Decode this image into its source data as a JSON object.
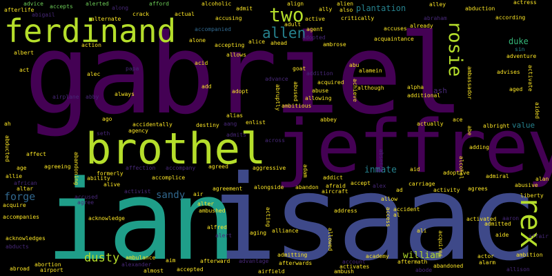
{
  "colors": {
    "background": "#000000",
    "purple": "#440154",
    "violet": "#482878",
    "indigo": "#3e4989",
    "blue": "#31688e",
    "teal": "#26828e",
    "green": "#1f9e89",
    "mint": "#35b779",
    "lime": "#6ece58",
    "yellow": "#b5de2b",
    "gold": "#fde725"
  },
  "words": [
    {
      "text": "gabriel",
      "color": "#440154"
    },
    {
      "text": "jeffrey",
      "color": "#440154"
    },
    {
      "text": "isaac",
      "color": "#3e4989"
    },
    {
      "text": "ian",
      "color": "#1f9e89"
    },
    {
      "text": "brothel",
      "color": "#b5de2b"
    },
    {
      "text": "ferdinand",
      "color": "#b5de2b"
    },
    {
      "text": "rex",
      "color": "#b5de2b"
    },
    {
      "text": "two",
      "color": "#b5de2b"
    },
    {
      "text": "allen",
      "color": "#26828e"
    },
    {
      "text": "rosie",
      "color": "#b5de2b"
    },
    {
      "text": "dusty",
      "color": "#b5de2b"
    },
    {
      "text": "forge",
      "color": "#31688e"
    },
    {
      "text": "sandy",
      "color": "#31688e"
    },
    {
      "text": "william",
      "color": "#b5de2b"
    },
    {
      "text": "plantation",
      "color": "#26828e"
    },
    {
      "text": "inmate",
      "color": "#26828e"
    },
    {
      "text": "duke",
      "color": "#35b779"
    },
    {
      "text": "value",
      "color": "#26828e"
    },
    {
      "text": "ash",
      "color": "#482878"
    },
    {
      "text": "afterlife",
      "color": "#fde725"
    },
    {
      "text": "advice",
      "color": "#6ece58"
    },
    {
      "text": "accepts",
      "color": "#6ece58"
    },
    {
      "text": "alerted",
      "color": "#6ece58"
    },
    {
      "text": "along",
      "color": "#482878"
    },
    {
      "text": "afford",
      "color": "#6ece58"
    },
    {
      "text": "alcoholic",
      "color": "#fde725"
    },
    {
      "text": "align",
      "color": "#fde725"
    },
    {
      "text": "alien",
      "color": "#fde725"
    },
    {
      "text": "ally",
      "color": "#fde725"
    },
    {
      "text": "also",
      "color": "#fde725"
    },
    {
      "text": "alley",
      "color": "#fde725"
    },
    {
      "text": "abduction",
      "color": "#fde725"
    },
    {
      "text": "actress",
      "color": "#fde725"
    },
    {
      "text": "abigail",
      "color": "#482878"
    },
    {
      "text": "alternate",
      "color": "#fde725"
    },
    {
      "text": "crack",
      "color": "#fde725"
    },
    {
      "text": "actual",
      "color": "#fde725"
    },
    {
      "text": "admit",
      "color": "#fde725"
    },
    {
      "text": "adult",
      "color": "#fde725"
    },
    {
      "text": "active",
      "color": "#fde725"
    },
    {
      "text": "critically",
      "color": "#fde725"
    },
    {
      "text": "abraham",
      "color": "#482878"
    },
    {
      "text": "according",
      "color": "#fde725"
    },
    {
      "text": "accompanied",
      "color": "#31688e"
    },
    {
      "text": "accusing",
      "color": "#fde725"
    },
    {
      "text": "agent",
      "color": "#fde725"
    },
    {
      "text": "adopted",
      "color": "#482878"
    },
    {
      "text": "accuses",
      "color": "#fde725"
    },
    {
      "text": "already",
      "color": "#fde725"
    },
    {
      "text": "acquaintance",
      "color": "#fde725"
    },
    {
      "text": "alone",
      "color": "#fde725"
    },
    {
      "text": "accepting",
      "color": "#fde725"
    },
    {
      "text": "alice",
      "color": "#fde725"
    },
    {
      "text": "ahead",
      "color": "#fde725"
    },
    {
      "text": "ambrose",
      "color": "#fde725"
    },
    {
      "text": "action",
      "color": "#fde725"
    },
    {
      "text": "sin",
      "color": "#26828e"
    },
    {
      "text": "albert",
      "color": "#fde725"
    },
    {
      "text": "allows",
      "color": "#fde725"
    },
    {
      "text": "adventure",
      "color": "#fde725"
    },
    {
      "text": "acid",
      "color": "#fde725"
    },
    {
      "text": "abu",
      "color": "#fde725"
    },
    {
      "text": "act",
      "color": "#fde725"
    },
    {
      "text": "papa",
      "color": "#482878"
    },
    {
      "text": "goat",
      "color": "#fde725"
    },
    {
      "text": "addition",
      "color": "#482878"
    },
    {
      "text": "alamein",
      "color": "#fde725"
    },
    {
      "text": "ambassador",
      "color": "#fde725"
    },
    {
      "text": "advises",
      "color": "#fde725"
    },
    {
      "text": "alec",
      "color": "#fde725"
    },
    {
      "text": "advance",
      "color": "#482878"
    },
    {
      "text": "acquired",
      "color": "#fde725"
    },
    {
      "text": "activate",
      "color": "#fde725"
    },
    {
      "text": "add",
      "color": "#fde725"
    },
    {
      "text": "abused",
      "color": "#fde725"
    },
    {
      "text": "abuse",
      "color": "#fde725"
    },
    {
      "text": "although",
      "color": "#fde725"
    },
    {
      "text": "alpha",
      "color": "#fde725"
    },
    {
      "text": "aged",
      "color": "#fde725"
    },
    {
      "text": "abby",
      "color": "#482878"
    },
    {
      "text": "always",
      "color": "#fde725"
    },
    {
      "text": "adopt",
      "color": "#fde725"
    },
    {
      "text": "abruptly",
      "color": "#fde725"
    },
    {
      "text": "allowing",
      "color": "#fde725"
    },
    {
      "text": "additional",
      "color": "#fde725"
    },
    {
      "text": "airplane",
      "color": "#482878"
    },
    {
      "text": "ambitious",
      "color": "#fde725"
    },
    {
      "text": "achieve",
      "color": "#fde725"
    },
    {
      "text": "ago",
      "color": "#fde725"
    },
    {
      "text": "alias",
      "color": "#fde725"
    },
    {
      "text": "aided",
      "color": "#fde725"
    },
    {
      "text": "ah",
      "color": "#fde725"
    },
    {
      "text": "accidentally",
      "color": "#fde725"
    },
    {
      "text": "destiny",
      "color": "#fde725"
    },
    {
      "text": "aang",
      "color": "#482878"
    },
    {
      "text": "enlist",
      "color": "#fde725"
    },
    {
      "text": "abbey",
      "color": "#fde725"
    },
    {
      "text": "ace",
      "color": "#fde725"
    },
    {
      "text": "actually",
      "color": "#fde725"
    },
    {
      "text": "albright",
      "color": "#fde725"
    },
    {
      "text": "abe",
      "color": "#fde725"
    },
    {
      "text": "seth",
      "color": "#482878"
    },
    {
      "text": "agency",
      "color": "#fde725"
    },
    {
      "text": "admits",
      "color": "#482878"
    },
    {
      "text": "across",
      "color": "#482878"
    },
    {
      "text": "adding",
      "color": "#fde725"
    },
    {
      "text": "abducted",
      "color": "#fde725"
    },
    {
      "text": "affect",
      "color": "#fde725"
    },
    {
      "text": "abandoning",
      "color": "#fde725"
    },
    {
      "text": "absence",
      "color": "#482878"
    },
    {
      "text": "alcohol",
      "color": "#fde725"
    },
    {
      "text": "age",
      "color": "#fde725"
    },
    {
      "text": "agreeing",
      "color": "#fde725"
    },
    {
      "text": "affection",
      "color": "#482878"
    },
    {
      "text": "accompany",
      "color": "#482878"
    },
    {
      "text": "agreed",
      "color": "#fde725"
    },
    {
      "text": "aggressive",
      "color": "#fde725"
    },
    {
      "text": "adam",
      "color": "#fde725"
    },
    {
      "text": "aid",
      "color": "#fde725"
    },
    {
      "text": "adoptive",
      "color": "#fde725"
    },
    {
      "text": "allie",
      "color": "#fde725"
    },
    {
      "text": "ability",
      "color": "#fde725"
    },
    {
      "text": "formerly",
      "color": "#fde725"
    },
    {
      "text": "accomplice",
      "color": "#fde725"
    },
    {
      "text": "addict",
      "color": "#fde725"
    },
    {
      "text": "admiral",
      "color": "#fde725"
    },
    {
      "text": "alan",
      "color": "#fde725"
    },
    {
      "text": "african",
      "color": "#482878"
    },
    {
      "text": "alive",
      "color": "#fde725"
    },
    {
      "text": "activist",
      "color": "#482878"
    },
    {
      "text": "agreement",
      "color": "#fde725"
    },
    {
      "text": "alongside",
      "color": "#fde725"
    },
    {
      "text": "abandon",
      "color": "#fde725"
    },
    {
      "text": "afraid",
      "color": "#fde725"
    },
    {
      "text": "accept",
      "color": "#fde725"
    },
    {
      "text": "alex",
      "color": "#482878"
    },
    {
      "text": "carriage",
      "color": "#fde725"
    },
    {
      "text": "activity",
      "color": "#fde725"
    },
    {
      "text": "agrees",
      "color": "#fde725"
    },
    {
      "text": "abusive",
      "color": "#fde725"
    },
    {
      "text": "altar",
      "color": "#fde725"
    },
    {
      "text": "air",
      "color": "#fde725"
    },
    {
      "text": "aircraft",
      "color": "#fde725"
    },
    {
      "text": "ad",
      "color": "#fde725"
    },
    {
      "text": "acquire",
      "color": "#fde725"
    },
    {
      "text": "accused",
      "color": "#482878"
    },
    {
      "text": "agree",
      "color": "#482878"
    },
    {
      "text": "alter",
      "color": "#fde725"
    },
    {
      "text": "allow",
      "color": "#fde725"
    },
    {
      "text": "liberty",
      "color": "#fde725"
    },
    {
      "text": "ambushed",
      "color": "#fde725"
    },
    {
      "text": "address",
      "color": "#fde725"
    },
    {
      "text": "acting",
      "color": "#fde725"
    },
    {
      "text": "access",
      "color": "#fde725"
    },
    {
      "text": "accident",
      "color": "#fde725"
    },
    {
      "text": "al",
      "color": "#fde725"
    },
    {
      "text": "activated",
      "color": "#fde725"
    },
    {
      "text": "aaron",
      "color": "#482878"
    },
    {
      "text": "admitted",
      "color": "#fde725"
    },
    {
      "text": "accompanies",
      "color": "#fde725"
    },
    {
      "text": "acknowledge",
      "color": "#fde725"
    },
    {
      "text": "alfred",
      "color": "#fde725"
    },
    {
      "text": "alert",
      "color": "#482878"
    },
    {
      "text": "aging",
      "color": "#fde725"
    },
    {
      "text": "alliance",
      "color": "#fde725"
    },
    {
      "text": "ali",
      "color": "#fde725"
    },
    {
      "text": "affair",
      "color": "#482878"
    },
    {
      "text": "aide",
      "color": "#fde725"
    },
    {
      "text": "acknowledges",
      "color": "#fde725"
    },
    {
      "text": "allowed",
      "color": "#fde725"
    },
    {
      "text": "acquires",
      "color": "#fde725"
    },
    {
      "text": "abducts",
      "color": "#482878"
    },
    {
      "text": "ambulance",
      "color": "#fde725"
    },
    {
      "text": "admitting",
      "color": "#fde725"
    },
    {
      "text": "academy",
      "color": "#fde725"
    },
    {
      "text": "actor",
      "color": "#fde725"
    },
    {
      "text": "ambition",
      "color": "#fde725"
    },
    {
      "text": "abortion",
      "color": "#fde725"
    },
    {
      "text": "aim",
      "color": "#fde725"
    },
    {
      "text": "afterward",
      "color": "#fde725"
    },
    {
      "text": "advantage",
      "color": "#482878"
    },
    {
      "text": "afterwards",
      "color": "#fde725"
    },
    {
      "text": "account",
      "color": "#482878"
    },
    {
      "text": "aftermath",
      "color": "#fde725"
    },
    {
      "text": "alarm",
      "color": "#fde725"
    },
    {
      "text": "abroad",
      "color": "#fde725"
    },
    {
      "text": "airport",
      "color": "#fde725"
    },
    {
      "text": "alexander",
      "color": "#482878"
    },
    {
      "text": "almost",
      "color": "#fde725"
    },
    {
      "text": "accepted",
      "color": "#fde725"
    },
    {
      "text": "airfield",
      "color": "#fde725"
    },
    {
      "text": "ambush",
      "color": "#fde725"
    },
    {
      "text": "activates",
      "color": "#fde725"
    },
    {
      "text": "abandoned",
      "color": "#fde725"
    },
    {
      "text": "abode",
      "color": "#482878"
    },
    {
      "text": "allison",
      "color": "#482878"
    }
  ]
}
